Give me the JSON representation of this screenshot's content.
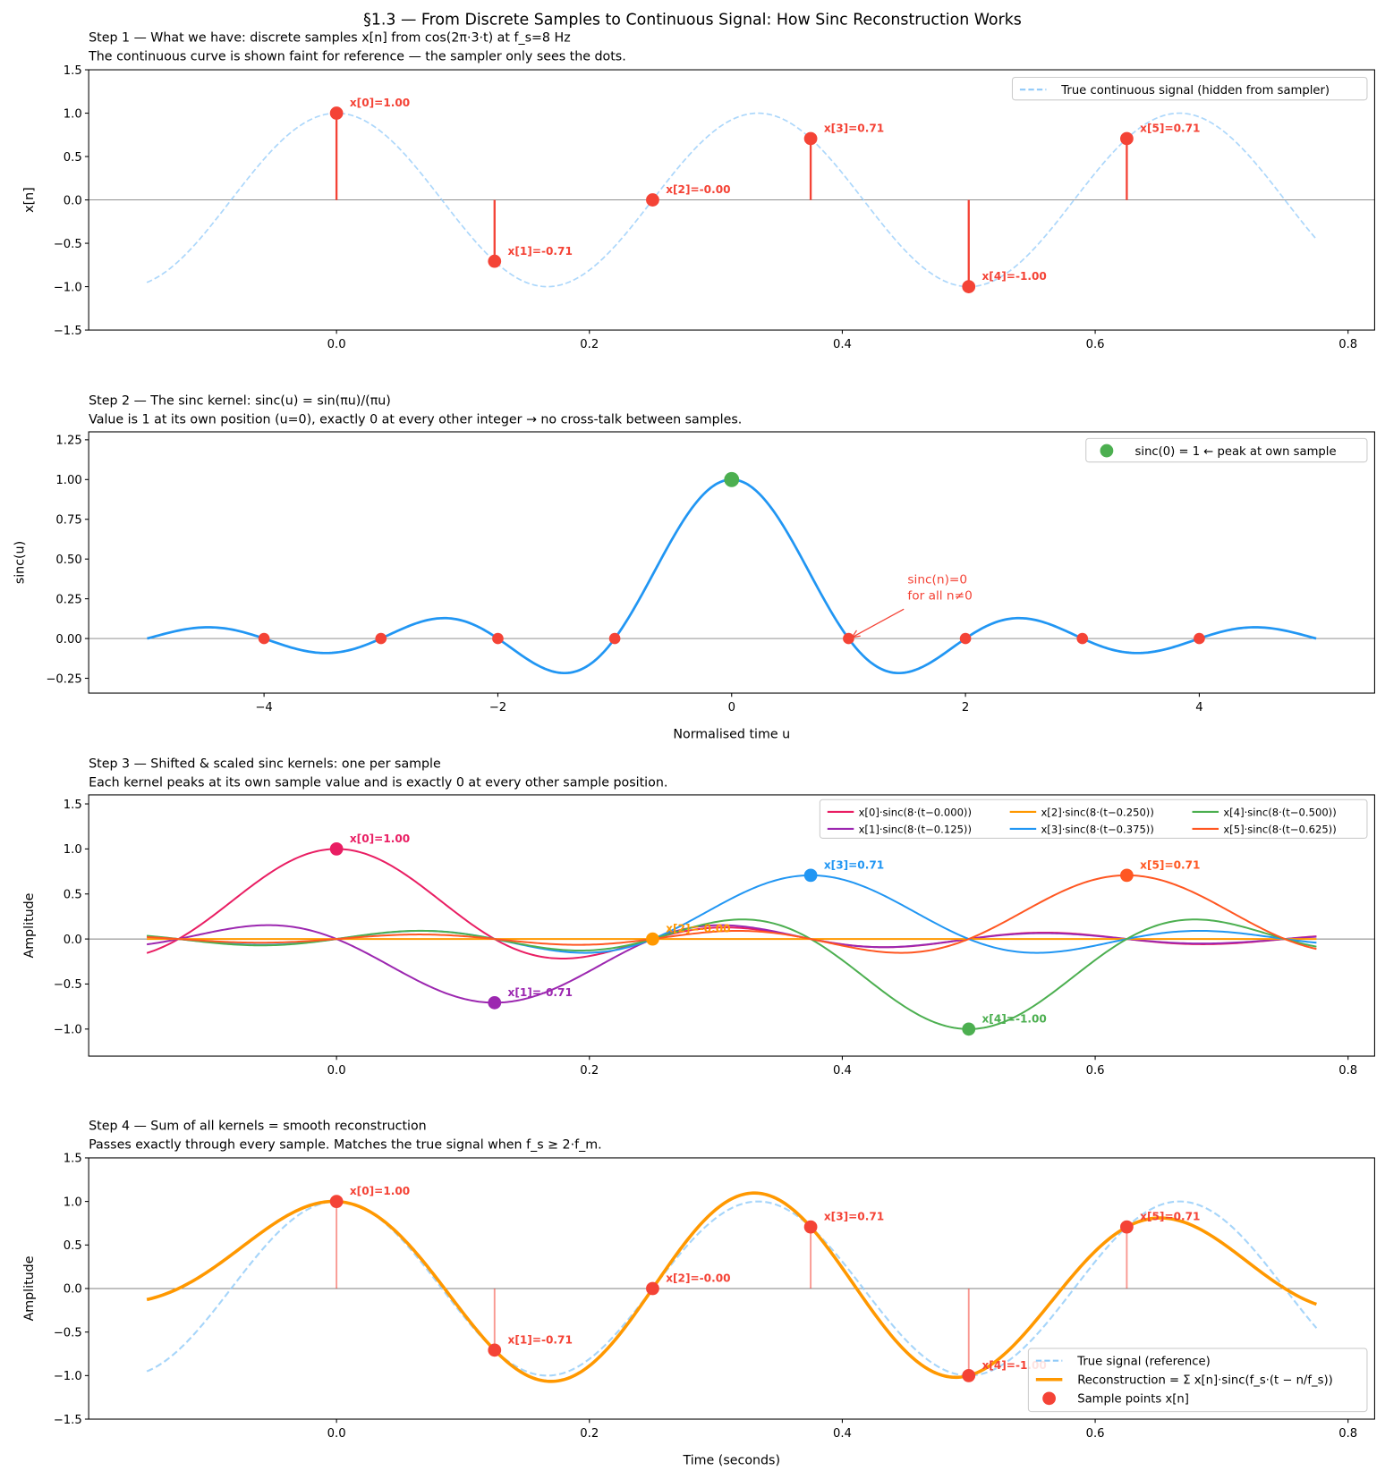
{
  "title": "§1.3 — From Discrete Samples to Continuous Signal: How Sinc Reconstruction Works",
  "colors": {
    "sample_red": "#F44336",
    "true_signal": "#90CAF9",
    "sinc_blue": "#2196F3",
    "peak_green": "#4CAF50",
    "reconstruction": "#FF9800",
    "kernels": [
      "#E91E63",
      "#9C27B0",
      "#FF9800",
      "#2196F3",
      "#4CAF50",
      "#FF5722"
    ]
  },
  "signal": {
    "frequency_hz": 3,
    "fs_hz": 8,
    "t_range": [
      -0.15,
      0.775
    ]
  },
  "samples": {
    "t": [
      0.0,
      0.125,
      0.25,
      0.375,
      0.5,
      0.625
    ],
    "values": [
      1.0,
      -0.7071,
      0.0,
      0.7071,
      -1.0,
      0.7071
    ],
    "labels": [
      "x[0]=1.00",
      "x[1]=-0.71",
      "x[2]=-0.00",
      "x[3]=0.71",
      "x[4]=-1.00",
      "x[5]=0.71"
    ]
  },
  "chart_data": [
    {
      "type": "line",
      "title": "Step 1 — What we have: discrete samples x[n] from cos(2π·3·t) at f_s=8 Hz",
      "subtitle": "The continuous curve is shown faint for reference — the sampler only sees the dots.",
      "xlabel": "",
      "ylabel": "x[n]",
      "xlim": [
        -0.196,
        0.821
      ],
      "ylim": [
        -1.5,
        1.5
      ],
      "xticks": [
        0.0,
        0.2,
        0.4,
        0.6,
        0.8
      ],
      "yticks": [
        -1.5,
        -1.0,
        -0.5,
        0.0,
        0.5,
        1.0,
        1.5
      ],
      "legend": [
        "True continuous signal (hidden from sampler)"
      ],
      "legend_position": "upper right"
    },
    {
      "type": "line",
      "title": "Step 2 — The sinc kernel: sinc(u) = sin(πu)/(πu)",
      "subtitle": "Value is 1 at its own position (u=0), exactly 0 at every other integer → no cross-talk between samples.",
      "xlabel": "Normalised time u",
      "ylabel": "sinc(u)",
      "u_range": [
        -5,
        5
      ],
      "xlim": [
        -5.5,
        5.5
      ],
      "ylim": [
        -0.343,
        1.3
      ],
      "xticks": [
        -4,
        -2,
        0,
        2,
        4
      ],
      "yticks": [
        -0.25,
        0.0,
        0.25,
        0.5,
        0.75,
        1.0,
        1.25
      ],
      "zero_points": [
        -4,
        -3,
        -2,
        -1,
        1,
        2,
        3,
        4
      ],
      "peak": [
        0,
        1
      ],
      "annotation": [
        "sinc(n)=0",
        "for all n≠0"
      ],
      "legend": [
        "sinc(0) = 1  ← peak at own sample"
      ],
      "legend_position": "upper right"
    },
    {
      "type": "line",
      "title": "Step 3 — Shifted & scaled sinc kernels: one per sample",
      "subtitle": "Each kernel peaks at its own sample value and is exactly 0 at every other sample position.",
      "xlabel": "",
      "ylabel": "Amplitude",
      "xlim": [
        -0.196,
        0.821
      ],
      "ylim": [
        -1.3,
        1.6
      ],
      "xticks": [
        0.0,
        0.2,
        0.4,
        0.6,
        0.8
      ],
      "yticks": [
        -1.0,
        -0.5,
        0.0,
        0.5,
        1.0,
        1.5
      ],
      "legend": [
        "x[0]·sinc(8·(t−0.000))",
        "x[1]·sinc(8·(t−0.125))",
        "x[2]·sinc(8·(t−0.250))",
        "x[3]·sinc(8·(t−0.375))",
        "x[4]·sinc(8·(t−0.500))",
        "x[5]·sinc(8·(t−0.625))"
      ],
      "legend_position": "upper right"
    },
    {
      "type": "line",
      "title": "Step 4 — Sum of all kernels = smooth reconstruction",
      "subtitle": "Passes exactly through every sample. Matches the true signal when f_s ≥ 2·f_m.",
      "xlabel": "Time (seconds)",
      "ylabel": "Amplitude",
      "xlim": [
        -0.196,
        0.821
      ],
      "ylim": [
        -1.5,
        1.5
      ],
      "xticks": [
        0.0,
        0.2,
        0.4,
        0.6,
        0.8
      ],
      "yticks": [
        -1.5,
        -1.0,
        -0.5,
        0.0,
        0.5,
        1.0,
        1.5
      ],
      "legend": [
        "True signal (reference)",
        "Reconstruction = Σ x[n]·sinc(f_s·(t − n/f_s))",
        "Sample points x[n]"
      ],
      "legend_position": "lower right"
    }
  ]
}
